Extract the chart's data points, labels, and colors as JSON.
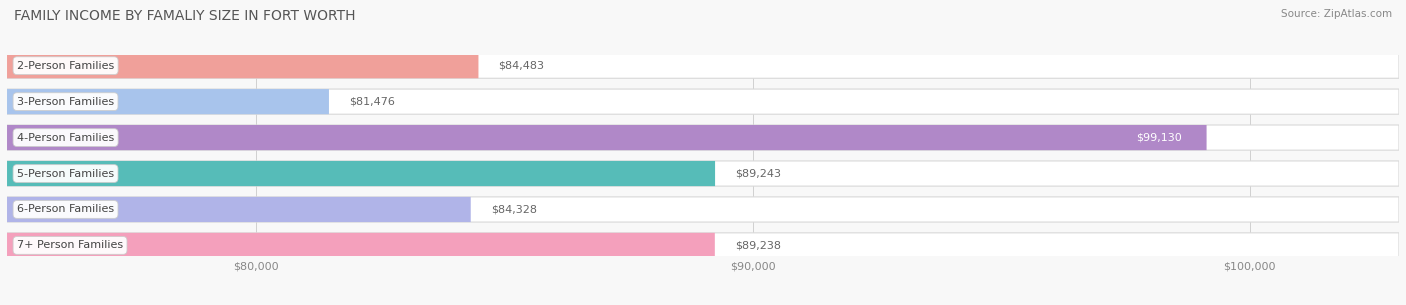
{
  "title": "FAMILY INCOME BY FAMALIY SIZE IN FORT WORTH",
  "source": "Source: ZipAtlas.com",
  "categories": [
    "2-Person Families",
    "3-Person Families",
    "4-Person Families",
    "5-Person Families",
    "6-Person Families",
    "7+ Person Families"
  ],
  "values": [
    84483,
    81476,
    99130,
    89243,
    84328,
    89238
  ],
  "labels": [
    "$84,483",
    "$81,476",
    "$99,130",
    "$89,243",
    "$84,328",
    "$89,238"
  ],
  "bar_colors": [
    "#f0a09a",
    "#a8c4ec",
    "#b088c8",
    "#56bcb8",
    "#b0b4e8",
    "#f4a0bc"
  ],
  "xmin": 75000,
  "xmax": 103000,
  "xticks": [
    80000,
    90000,
    100000
  ],
  "xticklabels": [
    "$80,000",
    "$90,000",
    "$100,000"
  ],
  "background_color": "#f8f8f8",
  "title_fontsize": 10,
  "label_fontsize": 8,
  "tick_fontsize": 8,
  "category_fontsize": 8
}
